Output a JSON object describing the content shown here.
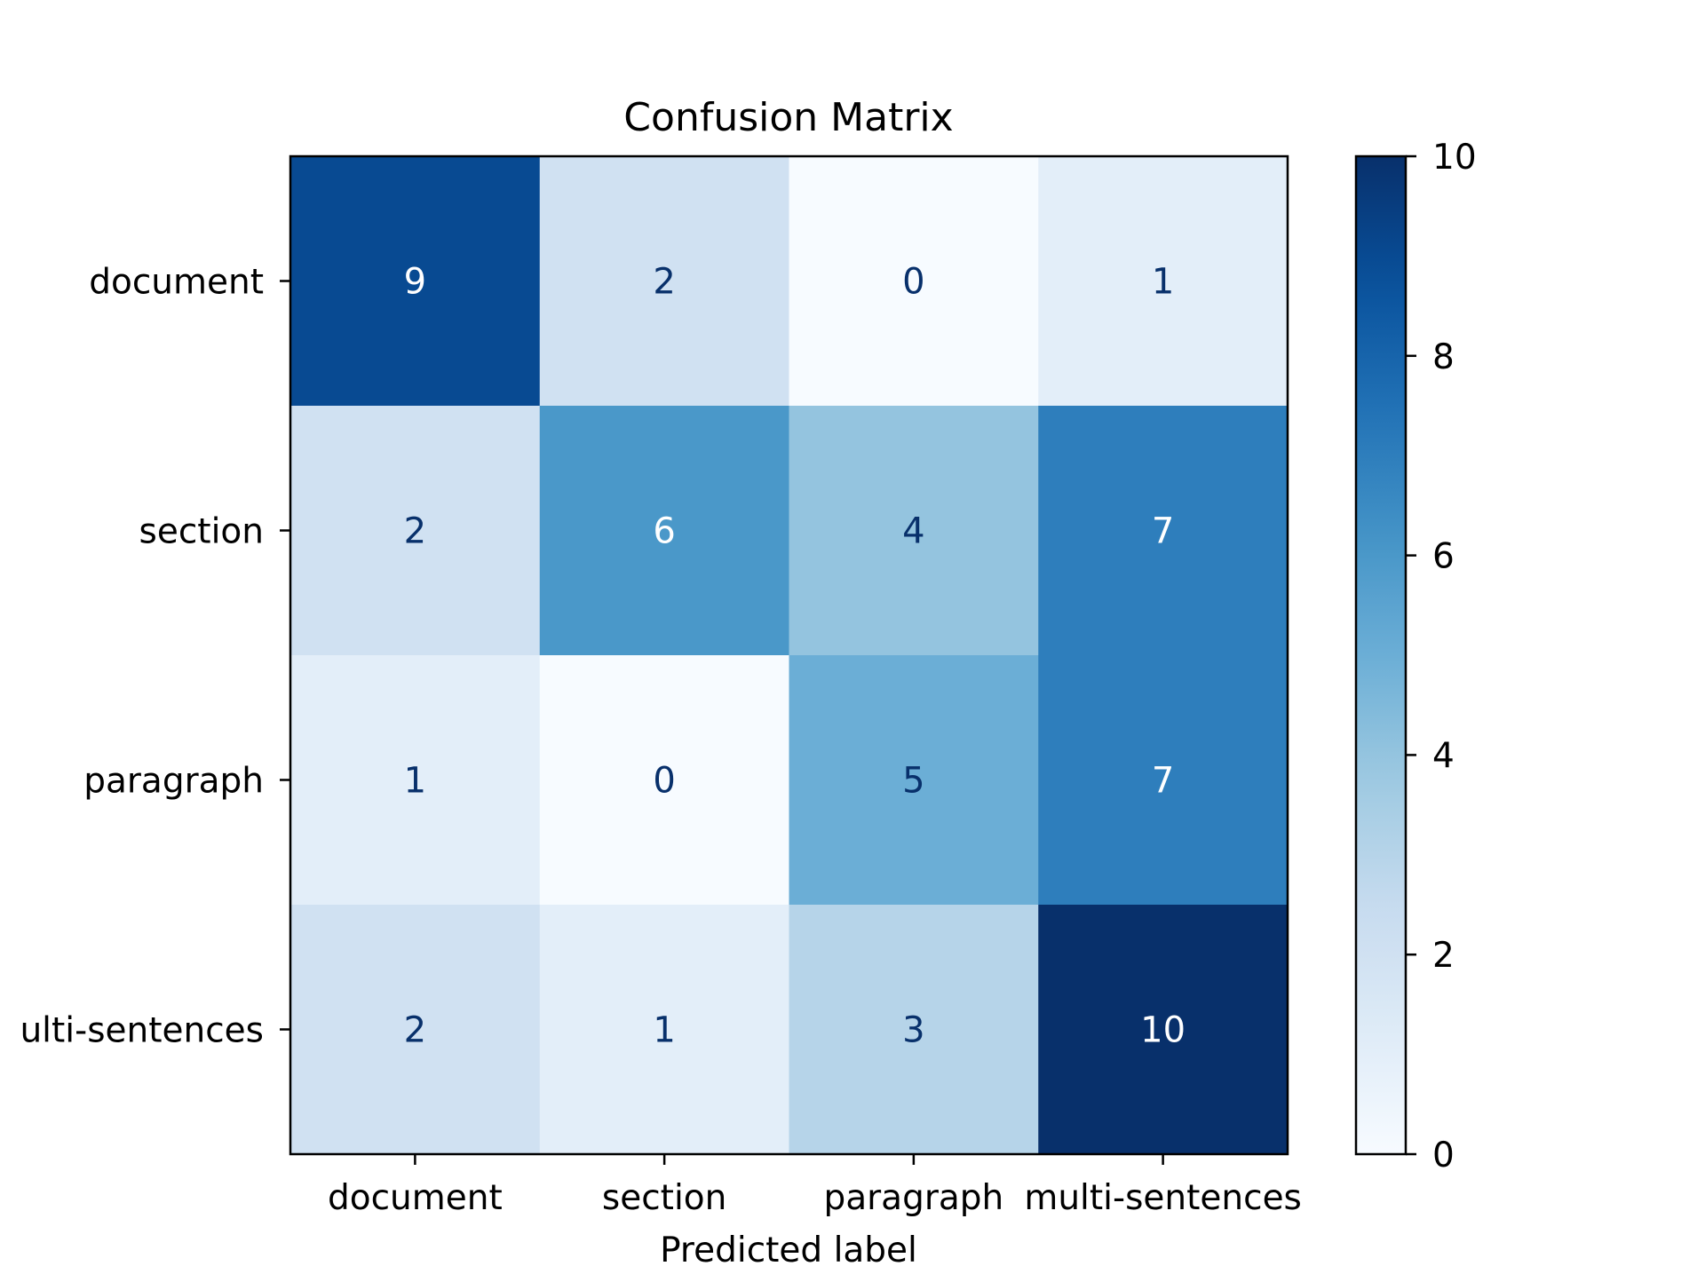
{
  "chart_data": {
    "type": "heatmap",
    "title": "Confusion Matrix",
    "xlabel": "Predicted label",
    "ylabel": "",
    "x_categories": [
      "document",
      "section",
      "paragraph",
      "multi-sentences"
    ],
    "y_categories": [
      "document",
      "section",
      "paragraph",
      "multi-sentences"
    ],
    "y_tick_labels_as_shown": [
      "document",
      "section",
      "paragraph",
      "ulti-sentences"
    ],
    "values": [
      [
        9,
        2,
        0,
        1
      ],
      [
        2,
        6,
        4,
        7
      ],
      [
        1,
        0,
        5,
        7
      ],
      [
        2,
        1,
        3,
        10
      ]
    ],
    "colormap": "Blues",
    "colorbar": {
      "range": [
        0,
        10
      ],
      "ticks": [
        "0",
        "2",
        "4",
        "6",
        "8",
        "10"
      ]
    },
    "text_colors": {
      "dark_cell": "#ffffff",
      "light_cell": "#08306b"
    },
    "grid": false
  }
}
